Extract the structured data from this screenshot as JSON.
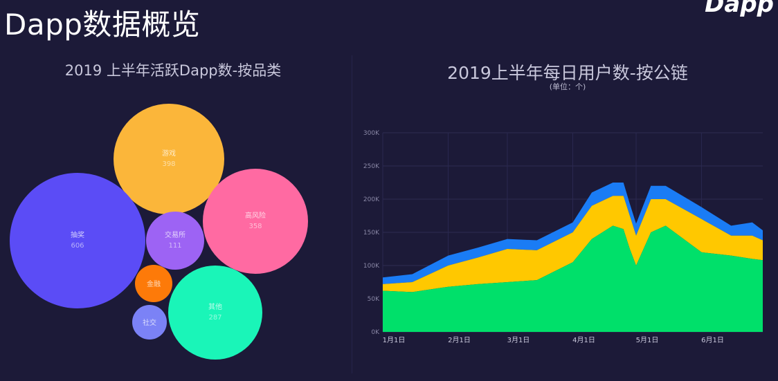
{
  "page": {
    "title": "Dapp数据概览",
    "logo_text": "Dapp"
  },
  "chart_data": [
    {
      "type": "bubble",
      "title": "2019 上半年活跃Dapp数-按品类",
      "points": [
        {
          "label": "游戏",
          "value": 398,
          "color": "#fbb63a"
        },
        {
          "label": "抽奖",
          "value": 606,
          "color": "#5b4cf6"
        },
        {
          "label": "高风险",
          "value": 358,
          "color": "#ff6aa2"
        },
        {
          "label": "交易所",
          "value": 111,
          "color": "#9d63f4"
        },
        {
          "label": "其他",
          "value": 287,
          "color": "#1af5b8"
        },
        {
          "label": "金融",
          "value": null,
          "color": "#fd7a09"
        },
        {
          "label": "社交",
          "value": null,
          "color": "#7b82f6"
        }
      ]
    },
    {
      "type": "area",
      "stacked": true,
      "title": "2019上半年每日用户数-按公链",
      "subtitle": "(单位：个)",
      "x_ticks": [
        "1月1日",
        "2月1日",
        "3月1日",
        "4月1日",
        "5月1日",
        "6月1日"
      ],
      "y_ticks": [
        "0K",
        "50K",
        "100K",
        "150K",
        "200K",
        "250K",
        "300K"
      ],
      "ylim": [
        0,
        300000
      ],
      "colors": [
        "#00e06a",
        "#ffc800",
        "#1a7cf5"
      ],
      "x_dates": [
        "2019-01-01",
        "2019-01-15",
        "2019-02-01",
        "2019-02-15",
        "2019-03-01",
        "2019-03-15",
        "2019-04-01",
        "2019-04-10",
        "2019-04-20",
        "2019-04-25",
        "2019-04-28",
        "2019-05-01",
        "2019-05-08",
        "2019-05-15",
        "2019-06-01",
        "2019-06-15",
        "2019-06-25",
        "2019-06-30"
      ],
      "series": [
        {
          "values": [
            62000,
            60000,
            68000,
            72000,
            75000,
            78000,
            105000,
            140000,
            160000,
            155000,
            125000,
            100000,
            150000,
            160000,
            120000,
            115000,
            110000,
            108000
          ]
        },
        {
          "values": [
            10000,
            15000,
            32000,
            40000,
            50000,
            45000,
            45000,
            50000,
            45000,
            50000,
            50000,
            45000,
            50000,
            40000,
            50000,
            30000,
            35000,
            30000
          ]
        },
        {
          "values": [
            10000,
            12000,
            15000,
            15000,
            15000,
            15000,
            15000,
            20000,
            20000,
            20000,
            18000,
            18000,
            20000,
            20000,
            18000,
            15000,
            20000,
            15000
          ]
        }
      ]
    }
  ]
}
